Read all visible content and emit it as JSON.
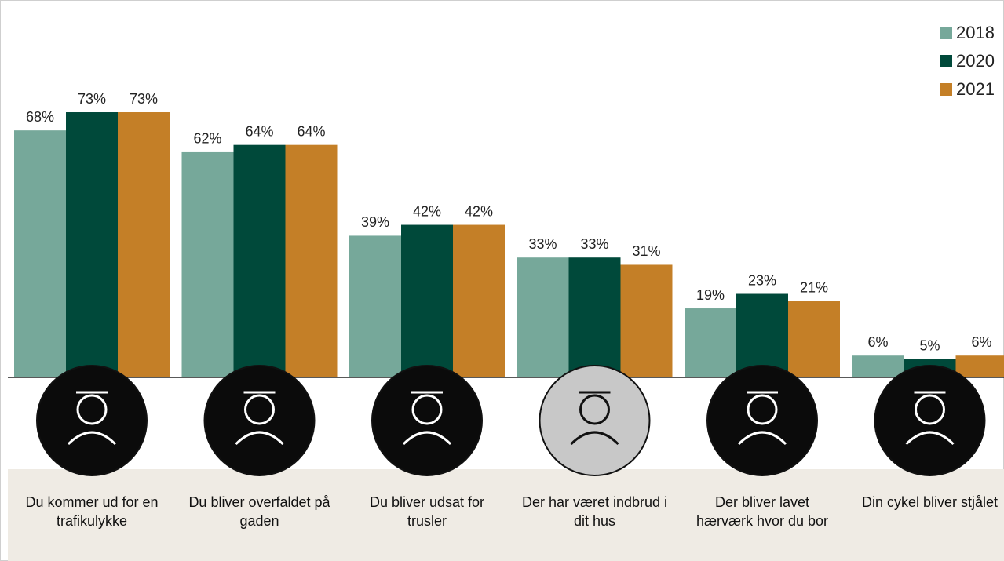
{
  "chart_data": {
    "type": "bar",
    "categories": [
      "Du kommer ud for en trafikulykke",
      "Du bliver overfaldet på gaden",
      "Du bliver udsat for trusler",
      "Der har været indbrud i dit hus",
      "Der bliver lavet hærværk hvor du bor",
      "Din cykel bliver stjålet"
    ],
    "series": [
      {
        "name": "2018",
        "color": "#76a89a",
        "values": [
          68,
          62,
          39,
          33,
          19,
          6
        ],
        "value_labels": [
          "68%",
          "62%",
          "39%",
          "33%",
          "19%",
          "6%"
        ]
      },
      {
        "name": "2020",
        "color": "#00493a",
        "values": [
          73,
          64,
          42,
          33,
          23,
          5
        ],
        "value_labels": [
          "73%",
          "64%",
          "42%",
          "33%",
          "23%",
          "5%"
        ]
      },
      {
        "name": "2021",
        "color": "#c47f27",
        "values": [
          73,
          64,
          42,
          31,
          21,
          6
        ],
        "value_labels": [
          "73%",
          "64%",
          "42%",
          "31%",
          "21%",
          "6%"
        ]
      }
    ],
    "legend": "top-right"
  }
}
